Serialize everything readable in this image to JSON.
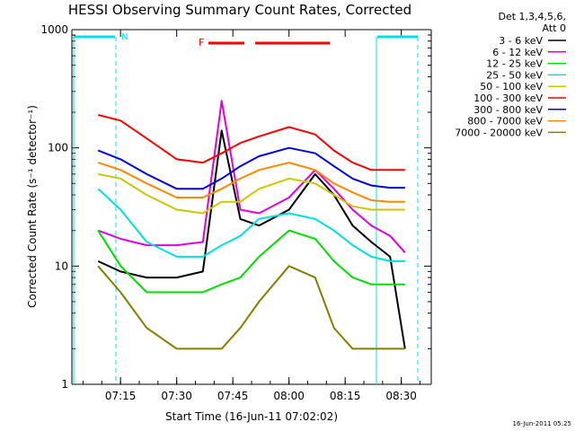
{
  "chart_data": {
    "type": "line",
    "title": "HESSI Observing Summary Count Rates, Corrected",
    "xlabel": "Start Time (16-Jun-11 07:02:02)",
    "ylabel": "Corrected Count Rate (s⁻¹ detector⁻¹)",
    "yscale": "log",
    "ylim": [
      1,
      1000
    ],
    "xlim": [
      "07:02",
      "08:38"
    ],
    "x_tick_labels": [
      "07:15",
      "07:30",
      "07:45",
      "08:00",
      "08:15",
      "08:30"
    ],
    "y_tick_labels": [
      "1",
      "10",
      "100",
      "1000"
    ],
    "grid": false,
    "legend_position": "top-right",
    "legend_header": [
      "Det 1,3,4,5,6,",
      "Att 0"
    ],
    "footer_date": "16-Jun-2011 05:25",
    "flag_labels": {
      "night_before": "N",
      "flare": "F"
    },
    "x": [
      "07:09",
      "07:15",
      "07:22",
      "07:30",
      "07:37",
      "07:42",
      "07:47",
      "07:52",
      "08:00",
      "08:07",
      "08:12",
      "08:17",
      "08:22",
      "08:27",
      "08:31"
    ],
    "series": [
      {
        "name": "3 - 6 keV",
        "color": "#000000",
        "values": [
          11,
          9,
          8,
          8,
          9,
          140,
          25,
          22,
          30,
          60,
          40,
          22,
          16,
          12,
          2
        ]
      },
      {
        "name": "6 - 12 keV",
        "color": "#e000e0",
        "values": [
          20,
          17,
          15,
          15,
          16,
          250,
          30,
          28,
          38,
          65,
          45,
          30,
          22,
          18,
          13
        ]
      },
      {
        "name": "12 - 25 keV",
        "color": "#00dd00",
        "values": [
          20,
          10,
          6,
          6,
          6,
          7,
          8,
          12,
          20,
          17,
          11,
          8,
          7,
          7,
          7
        ]
      },
      {
        "name": "25 - 50 keV",
        "color": "#00e0e0",
        "values": [
          45,
          30,
          16,
          12,
          12,
          15,
          18,
          25,
          28,
          25,
          20,
          15,
          12,
          11,
          11
        ]
      },
      {
        "name": "50 - 100 keV",
        "color": "#c8c800",
        "values": [
          60,
          55,
          40,
          30,
          28,
          35,
          35,
          45,
          55,
          50,
          40,
          32,
          30,
          30,
          30
        ]
      },
      {
        "name": "100 - 300 keV",
        "color": "#ff0000",
        "values": [
          190,
          170,
          120,
          80,
          75,
          90,
          110,
          125,
          150,
          130,
          95,
          75,
          65,
          65,
          65
        ]
      },
      {
        "name": "300 - 800 keV",
        "color": "#0000ee",
        "values": [
          95,
          80,
          60,
          45,
          45,
          55,
          70,
          85,
          100,
          90,
          70,
          55,
          48,
          46,
          46
        ]
      },
      {
        "name": "800 - 7000 keV",
        "color": "#ff8800",
        "values": [
          75,
          65,
          50,
          38,
          38,
          45,
          55,
          65,
          75,
          65,
          50,
          42,
          36,
          35,
          35
        ]
      },
      {
        "name": "7000 - 20000 keV",
        "color": "#808000",
        "values": [
          10,
          6,
          3,
          2,
          2,
          2,
          3,
          5,
          10,
          8,
          3,
          2,
          2,
          2,
          2
        ]
      }
    ]
  }
}
